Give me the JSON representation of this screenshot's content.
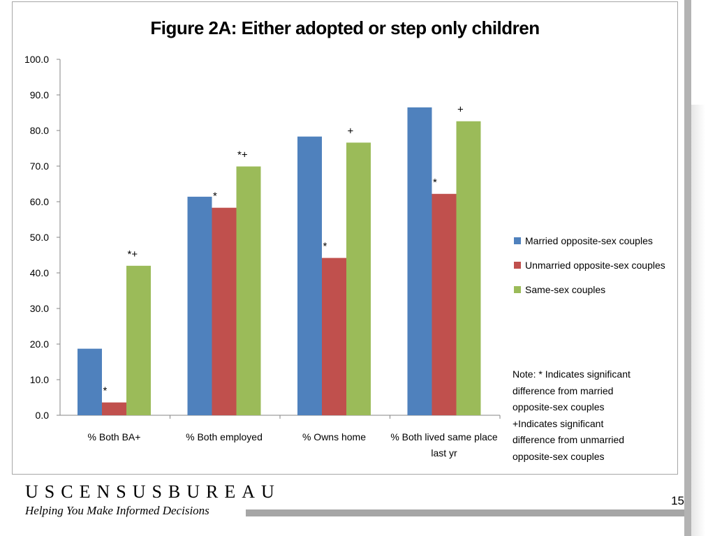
{
  "chart_data": {
    "type": "bar",
    "title": "Figure 2A: Either adopted or step only children",
    "categories": [
      "% Both BA+",
      "% Both employed",
      "% Owns home",
      "% Both lived same place last yr"
    ],
    "series": [
      {
        "name": "Married opposite-sex couples",
        "color": "#4f81bd",
        "values": [
          18.7,
          61.4,
          78.3,
          86.5
        ]
      },
      {
        "name": "Unmarried opposite-sex couples",
        "color": "#c0504d",
        "values": [
          3.6,
          58.3,
          44.2,
          62.2
        ]
      },
      {
        "name": "Same-sex couples",
        "color": "#9bbb59",
        "values": [
          42.0,
          69.9,
          76.6,
          82.6
        ]
      }
    ],
    "markers": [
      [
        "",
        "*",
        "*+"
      ],
      [
        "",
        "*",
        "*+"
      ],
      [
        "",
        "*",
        "+"
      ],
      [
        "",
        "*",
        "+"
      ]
    ],
    "ylim": [
      0,
      100
    ],
    "yticks": [
      "0.0",
      "10.0",
      "20.0",
      "30.0",
      "40.0",
      "50.0",
      "60.0",
      "70.0",
      "80.0",
      "90.0",
      "100.0"
    ],
    "xlabel": "",
    "ylabel": "",
    "grid": false,
    "legend_position": "right"
  },
  "note": "Note: * Indicates significant\ndifference from married\nopposite-sex couples\n+Indicates significant\ndifference from unmarried\nopposite-sex couples",
  "footer": {
    "brand": "USCENSUSBUREAU",
    "tagline": "Helping You Make Informed Decisions",
    "page_number": "15"
  }
}
